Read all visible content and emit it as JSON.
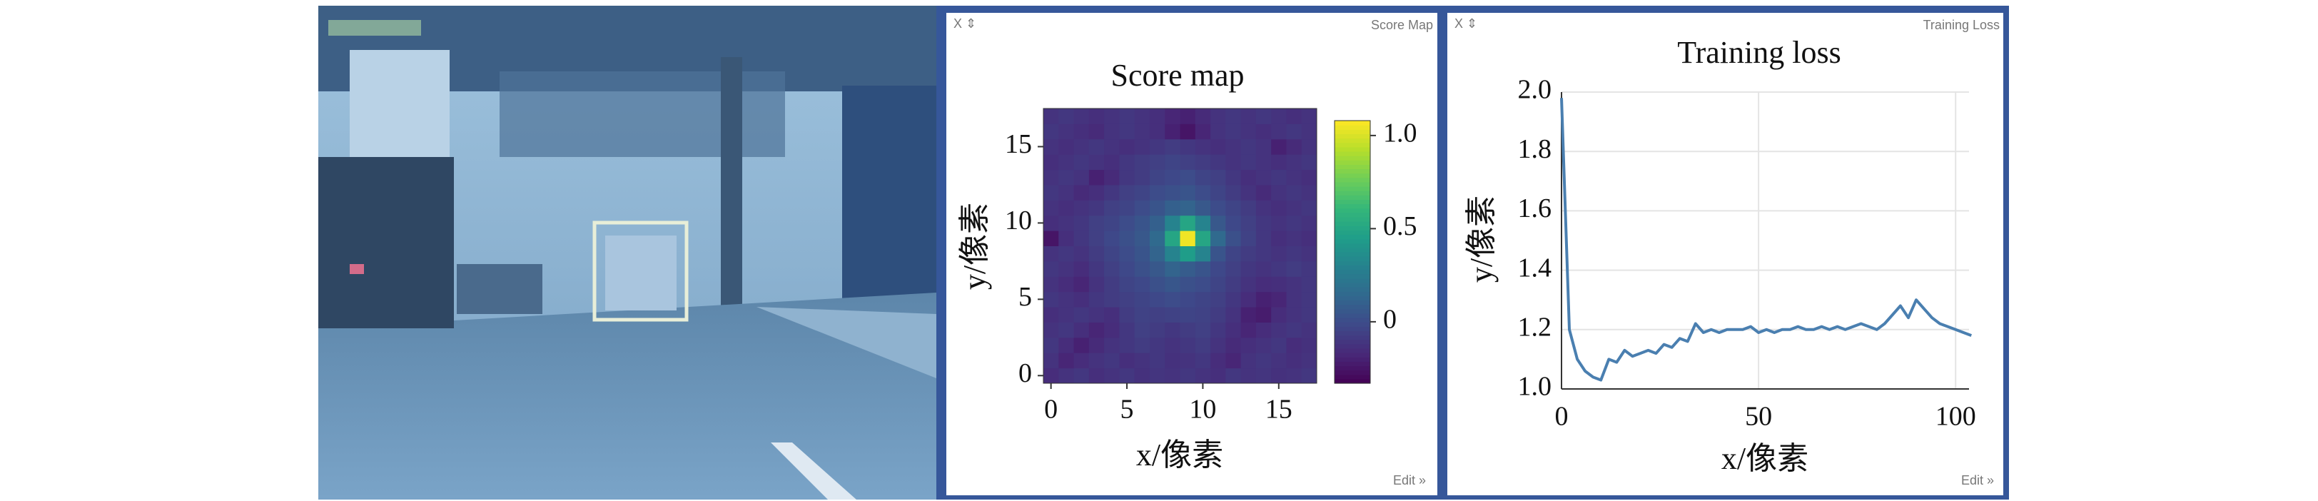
{
  "windows": [
    {
      "controls": "X ⇕",
      "title": "Score Map",
      "edit": "Edit »"
    },
    {
      "controls": "X ⇕",
      "title": "Training Loss",
      "edit": "Edit »"
    }
  ],
  "chart_data": [
    {
      "type": "heatmap",
      "title": "Score map",
      "xlabel": "x/像素",
      "ylabel": "y/像素",
      "xlim": [
        -0.5,
        17.5
      ],
      "ylim": [
        -0.5,
        17.5
      ],
      "xticks": [
        0,
        5,
        10,
        15
      ],
      "yticks": [
        0,
        5,
        10,
        15
      ],
      "colormap": "viridis",
      "colorbar_lim": [
        -0.33,
        1.08
      ],
      "colorbar_ticks": [
        0,
        0.5,
        {
          "value": 1,
          "label": "1.0"
        }
      ],
      "values": [
        [
          -0.15,
          -0.12,
          -0.1,
          -0.14,
          -0.12,
          -0.1,
          -0.13,
          -0.11,
          -0.12,
          -0.1,
          -0.12,
          -0.14,
          -0.1,
          -0.12,
          -0.11,
          -0.13,
          -0.12,
          -0.1
        ],
        [
          -0.12,
          -0.18,
          -0.15,
          -0.12,
          -0.1,
          -0.14,
          -0.12,
          -0.1,
          -0.13,
          -0.12,
          -0.1,
          -0.15,
          -0.18,
          -0.12,
          -0.1,
          -0.12,
          -0.14,
          -0.12
        ],
        [
          -0.1,
          -0.15,
          -0.2,
          -0.16,
          -0.12,
          -0.1,
          -0.08,
          -0.1,
          -0.12,
          -0.1,
          -0.08,
          -0.12,
          -0.16,
          -0.14,
          -0.12,
          -0.1,
          -0.15,
          -0.13
        ],
        [
          -0.12,
          -0.1,
          -0.14,
          -0.18,
          -0.15,
          -0.1,
          -0.06,
          -0.08,
          -0.1,
          -0.08,
          -0.06,
          -0.1,
          -0.14,
          -0.18,
          -0.15,
          -0.12,
          -0.1,
          -0.12
        ],
        [
          -0.14,
          -0.12,
          -0.1,
          -0.12,
          -0.14,
          -0.08,
          -0.05,
          -0.06,
          -0.05,
          -0.04,
          -0.05,
          -0.08,
          -0.12,
          -0.2,
          -0.22,
          -0.15,
          -0.12,
          -0.1
        ],
        [
          -0.1,
          -0.12,
          -0.14,
          -0.1,
          -0.08,
          -0.06,
          -0.04,
          -0.02,
          0,
          -0.02,
          -0.04,
          -0.06,
          -0.1,
          -0.15,
          -0.2,
          -0.18,
          -0.12,
          -0.1
        ],
        [
          -0.12,
          -0.15,
          -0.18,
          -0.12,
          -0.08,
          -0.04,
          -0.02,
          0.02,
          0.05,
          0.02,
          0,
          -0.04,
          -0.08,
          -0.12,
          -0.15,
          -0.14,
          -0.12,
          -0.1
        ],
        [
          -0.1,
          -0.12,
          -0.15,
          -0.1,
          -0.06,
          -0.02,
          0.02,
          0.06,
          0.12,
          0.08,
          0.04,
          -0.02,
          -0.06,
          -0.1,
          -0.12,
          -0.1,
          -0.08,
          -0.1
        ],
        [
          -0.12,
          -0.1,
          -0.12,
          -0.08,
          -0.04,
          0,
          0.04,
          0.12,
          0.3,
          0.45,
          0.3,
          0.04,
          -0.04,
          -0.08,
          -0.1,
          -0.12,
          -0.1,
          -0.12
        ],
        [
          -0.25,
          -0.14,
          -0.1,
          -0.06,
          -0.02,
          0.02,
          0.06,
          0.15,
          0.5,
          1.05,
          0.5,
          0.15,
          0.02,
          -0.05,
          -0.1,
          -0.14,
          -0.12,
          -0.14
        ],
        [
          -0.14,
          -0.12,
          -0.1,
          -0.06,
          -0.04,
          0,
          0.04,
          0.1,
          0.3,
          0.5,
          0.3,
          0.06,
          -0.02,
          -0.06,
          -0.1,
          -0.12,
          -0.1,
          -0.12
        ],
        [
          -0.12,
          -0.14,
          -0.12,
          -0.1,
          -0.06,
          -0.04,
          0,
          0.04,
          0.1,
          0.12,
          0.06,
          0,
          -0.04,
          -0.08,
          -0.12,
          -0.14,
          -0.12,
          -0.1
        ],
        [
          -0.1,
          -0.12,
          -0.16,
          -0.14,
          -0.1,
          -0.06,
          -0.04,
          0,
          0.02,
          0.04,
          0,
          -0.04,
          -0.08,
          -0.12,
          -0.16,
          -0.12,
          -0.1,
          -0.12
        ],
        [
          -0.12,
          -0.1,
          -0.12,
          -0.2,
          -0.16,
          -0.1,
          -0.08,
          -0.04,
          -0.02,
          0,
          -0.04,
          -0.06,
          -0.1,
          -0.14,
          -0.12,
          -0.1,
          -0.12,
          -0.14
        ],
        [
          -0.14,
          -0.12,
          -0.1,
          -0.12,
          -0.14,
          -0.1,
          -0.08,
          -0.06,
          -0.04,
          -0.06,
          -0.08,
          -0.1,
          -0.12,
          -0.1,
          -0.12,
          -0.14,
          -0.12,
          -0.1
        ],
        [
          -0.12,
          -0.14,
          -0.12,
          -0.1,
          -0.12,
          -0.14,
          -0.12,
          -0.1,
          -0.08,
          -0.1,
          -0.12,
          -0.14,
          -0.12,
          -0.1,
          -0.12,
          -0.2,
          -0.16,
          -0.12
        ],
        [
          -0.1,
          -0.12,
          -0.14,
          -0.16,
          -0.12,
          -0.1,
          -0.12,
          -0.14,
          -0.2,
          -0.25,
          -0.18,
          -0.12,
          -0.1,
          -0.12,
          -0.14,
          -0.12,
          -0.1,
          -0.12
        ],
        [
          -0.12,
          -0.1,
          -0.12,
          -0.14,
          -0.12,
          -0.1,
          -0.12,
          -0.14,
          -0.18,
          -0.2,
          -0.16,
          -0.12,
          -0.1,
          -0.12,
          -0.1,
          -0.12,
          -0.14,
          -0.12
        ]
      ]
    },
    {
      "type": "line",
      "title": "Training loss",
      "xlabel": "x/像素",
      "ylabel": "y/像素",
      "xlim": [
        0,
        103.4
      ],
      "ylim": [
        1.0,
        2.0
      ],
      "xticks": [
        0,
        50,
        100
      ],
      "yticks": [
        {
          "value": 1,
          "label": "1.0"
        },
        1.2,
        1.4,
        1.6,
        1.8,
        {
          "value": 2,
          "label": "2.0"
        }
      ],
      "grid": true,
      "color": "#4a7fb0",
      "x": [
        0,
        2,
        4,
        6,
        8,
        10,
        12,
        14,
        16,
        18,
        20,
        22,
        24,
        26,
        28,
        30,
        32,
        34,
        36,
        38,
        40,
        42,
        44,
        46,
        48,
        50,
        52,
        54,
        56,
        58,
        60,
        62,
        64,
        66,
        68,
        70,
        72,
        74,
        76,
        78,
        80,
        82,
        84,
        86,
        88,
        90,
        92,
        94,
        96,
        98,
        100,
        102,
        104
      ],
      "values": [
        1.98,
        1.2,
        1.1,
        1.06,
        1.04,
        1.03,
        1.1,
        1.09,
        1.13,
        1.11,
        1.12,
        1.13,
        1.12,
        1.15,
        1.14,
        1.17,
        1.16,
        1.22,
        1.19,
        1.2,
        1.19,
        1.2,
        1.2,
        1.2,
        1.21,
        1.19,
        1.2,
        1.19,
        1.2,
        1.2,
        1.21,
        1.2,
        1.2,
        1.21,
        1.2,
        1.21,
        1.2,
        1.21,
        1.22,
        1.21,
        1.2,
        1.22,
        1.25,
        1.28,
        1.24,
        1.3,
        1.27,
        1.24,
        1.22,
        1.21,
        1.2,
        1.19,
        1.18
      ]
    }
  ]
}
